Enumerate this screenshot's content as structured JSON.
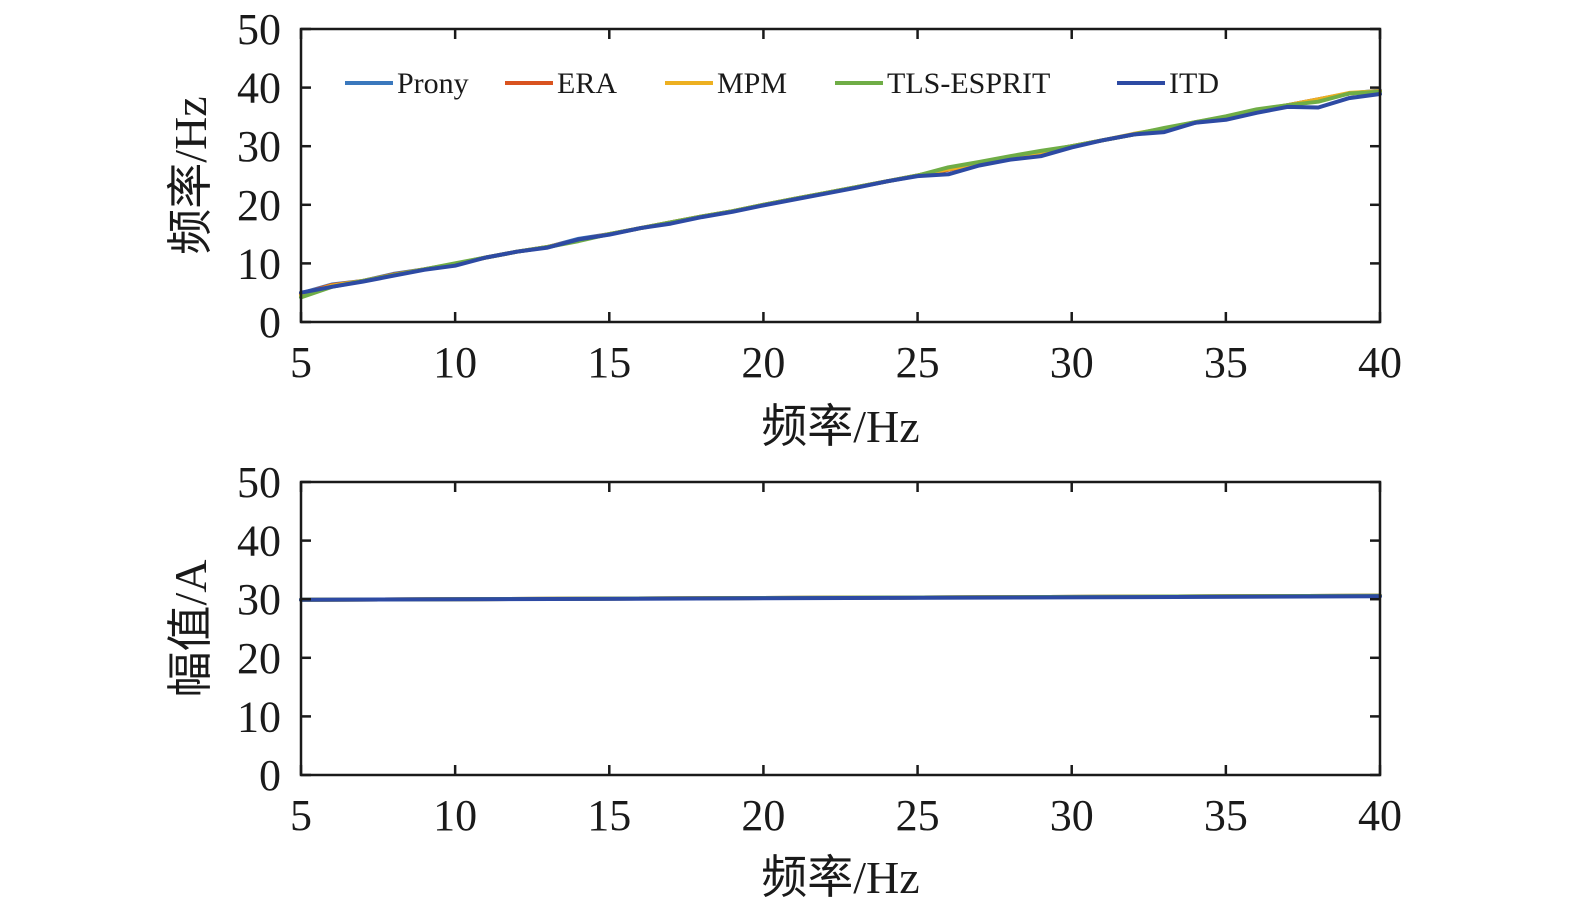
{
  "chart_data": [
    {
      "type": "line",
      "xlabel": "频率/Hz",
      "ylabel": "频率/Hz",
      "xlim": [
        5,
        40
      ],
      "ylim": [
        0,
        50
      ],
      "xticks": [
        "5",
        "10",
        "15",
        "20",
        "25",
        "30",
        "35",
        "40"
      ],
      "yticks": [
        "0",
        "10",
        "20",
        "30",
        "40",
        "50"
      ],
      "grid": false,
      "legend": "top, horizontal inside plot",
      "x": [
        5,
        6,
        7,
        8,
        9,
        10,
        11,
        12,
        13,
        14,
        15,
        16,
        17,
        18,
        19,
        20,
        21,
        22,
        23,
        24,
        25,
        26,
        27,
        28,
        29,
        30,
        31,
        32,
        33,
        34,
        35,
        36,
        37,
        38,
        39,
        40
      ],
      "series": [
        {
          "name": "Prony",
          "color": "#3a78bd",
          "values": [
            4.9,
            6.4,
            7.0,
            8.2,
            9.0,
            9.9,
            11.0,
            12.0,
            12.8,
            14.2,
            15.0,
            16.0,
            17.0,
            18.0,
            18.9,
            20.0,
            21.0,
            22.0,
            23.0,
            24.0,
            25.0,
            26.0,
            27.0,
            28.0,
            29.0,
            30.0,
            31.0,
            32.0,
            33.0,
            34.0,
            35.0,
            36.0,
            37.0,
            38.0,
            39.0,
            39.5
          ]
        },
        {
          "name": "ERA",
          "color": "#d9531f",
          "values": [
            4.8,
            6.3,
            7.0,
            8.1,
            9.0,
            9.9,
            11.0,
            12.0,
            12.8,
            14.0,
            15.0,
            16.0,
            17.0,
            18.0,
            18.9,
            20.0,
            21.0,
            22.0,
            23.0,
            24.0,
            25.0,
            26.0,
            27.0,
            28.0,
            29.0,
            30.0,
            31.0,
            32.0,
            33.0,
            34.0,
            35.0,
            36.0,
            37.0,
            38.0,
            39.0,
            39.4
          ]
        },
        {
          "name": "MPM",
          "color": "#edb021",
          "values": [
            4.6,
            6.2,
            7.0,
            8.0,
            9.0,
            9.9,
            11.0,
            12.0,
            12.8,
            13.9,
            15.0,
            16.0,
            17.0,
            18.0,
            18.9,
            20.0,
            21.0,
            22.0,
            23.0,
            24.0,
            25.0,
            26.1,
            27.0,
            28.1,
            29.0,
            30.0,
            31.0,
            32.1,
            33.0,
            34.1,
            35.0,
            36.2,
            37.0,
            38.0,
            39.1,
            39.4
          ]
        },
        {
          "name": "TLS-ESPRIT",
          "color": "#6fad46",
          "values": [
            4.2,
            6.0,
            7.0,
            8.0,
            9.0,
            10.0,
            11.0,
            12.0,
            12.8,
            13.8,
            15.0,
            16.0,
            17.0,
            18.0,
            18.9,
            20.0,
            21.0,
            22.0,
            23.0,
            24.0,
            25.0,
            26.4,
            27.3,
            28.3,
            29.2,
            30.0,
            31.0,
            32.0,
            33.1,
            34.1,
            35.1,
            36.3,
            37.0,
            37.6,
            39.0,
            39.3
          ]
        },
        {
          "name": "ITD",
          "color": "#2d4aa3",
          "values": [
            5.0,
            6.0,
            6.9,
            7.9,
            8.9,
            9.6,
            11.0,
            12.0,
            12.7,
            14.1,
            14.9,
            16.0,
            16.8,
            17.9,
            18.8,
            19.9,
            20.9,
            21.9,
            22.9,
            24.0,
            24.9,
            25.2,
            26.7,
            27.7,
            28.3,
            29.8,
            31.0,
            32.0,
            32.4,
            34.0,
            34.5,
            35.7,
            36.7,
            36.6,
            38.2,
            38.9
          ]
        }
      ]
    },
    {
      "type": "line",
      "xlabel": "频率/Hz",
      "ylabel": "幅值/A",
      "xlim": [
        5,
        40
      ],
      "ylim": [
        0,
        50
      ],
      "xticks": [
        "5",
        "10",
        "15",
        "20",
        "25",
        "30",
        "35",
        "40"
      ],
      "yticks": [
        "0",
        "10",
        "20",
        "30",
        "40",
        "50"
      ],
      "grid": false,
      "x": [
        5,
        40
      ],
      "series": [
        {
          "color": "#3a78bd",
          "values": [
            29.9,
            30.6
          ]
        },
        {
          "color": "#d9531f",
          "values": [
            29.9,
            30.6
          ]
        },
        {
          "color": "#edb021",
          "values": [
            29.9,
            30.6
          ]
        },
        {
          "color": "#6fad46",
          "values": [
            29.9,
            30.6
          ]
        },
        {
          "color": "#2d4aa3",
          "values": [
            29.9,
            30.5
          ]
        }
      ]
    }
  ]
}
